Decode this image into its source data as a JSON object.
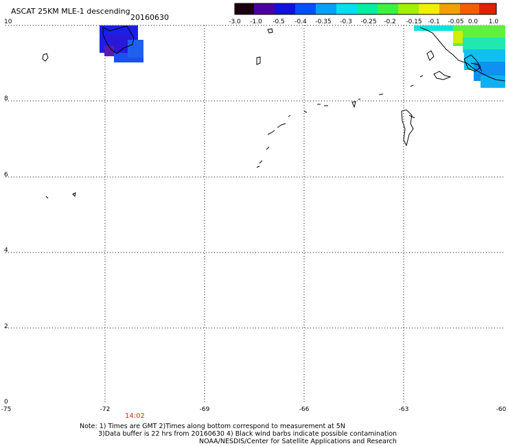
{
  "header": {
    "title": "ASCAT 25KM MLE-1 descending",
    "date": "20160630"
  },
  "colorbar": {
    "labels": [
      "-3.0",
      "-1.0",
      "-0.5",
      "-0.4",
      "-0.35",
      "-0.3",
      "-0.25",
      "-0.2",
      "-0.15",
      "-0.1",
      "-0.05",
      "0.0",
      "1.0"
    ]
  },
  "axes": {
    "y_labels": [
      "10",
      "8",
      "6",
      "4",
      "2",
      "0"
    ],
    "x_labels": [
      "-75",
      "-72",
      "-69",
      "-66",
      "-63",
      "-60"
    ]
  },
  "time_marker": "14:02",
  "notes": {
    "line1": "Note: 1) Times are GMT 2)Times along bottom correspond to measurement at 5N",
    "line2": "3)Data buffer is 22 hrs from 20160630 4) Black wind barbs indicate possible contamination",
    "line3": "NOAA/NESDIS/Center for Satellite Applications and Research"
  }
}
